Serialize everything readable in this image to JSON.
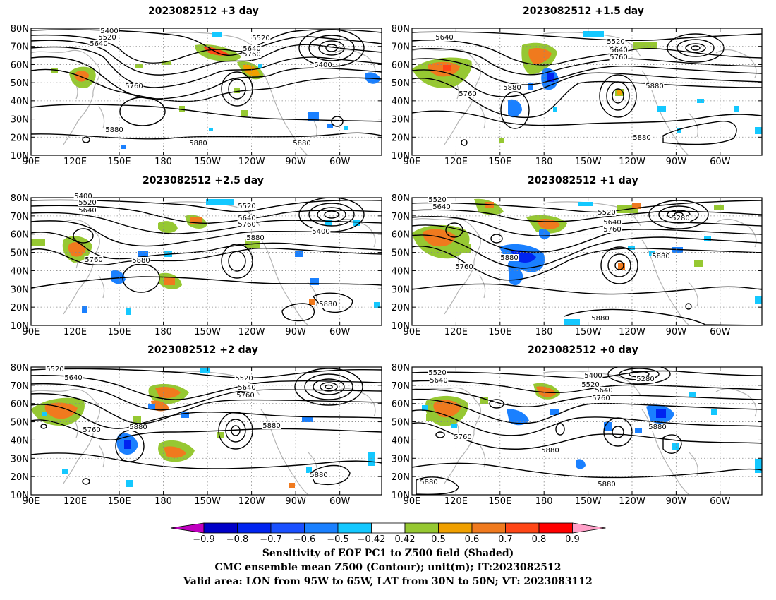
{
  "panels": [
    {
      "id": "p1",
      "title": "2023082512  +3 day",
      "labels": [
        [
          "5400",
          155,
          46
        ],
        [
          "5520",
          152,
          55
        ],
        [
          "5640",
          140,
          64
        ],
        [
          "5520",
          370,
          56
        ],
        [
          "5640",
          357,
          71
        ],
        [
          "5760",
          357,
          79
        ],
        [
          "5400",
          458,
          94
        ],
        [
          "5760",
          190,
          124
        ],
        [
          "5880",
          162,
          186
        ],
        [
          "5880",
          281,
          205
        ],
        [
          "5880",
          428,
          205
        ]
      ]
    },
    {
      "id": "p2",
      "title": "2023082512  +1.5 day",
      "labels": [
        [
          "5640",
          630,
          55
        ],
        [
          "5520",
          873,
          61
        ],
        [
          "5640",
          877,
          73
        ],
        [
          "5760",
          877,
          83
        ],
        [
          "5760",
          663,
          135
        ],
        [
          "5880",
          726,
          126
        ],
        [
          "5880",
          928,
          124
        ],
        [
          "5880",
          910,
          197
        ]
      ]
    },
    {
      "id": "p3",
      "title": "2023082512  +2.5 day",
      "labels": [
        [
          "5400",
          118,
          280
        ],
        [
          "5520",
          124,
          289
        ],
        [
          "5640",
          124,
          300
        ],
        [
          "5520",
          350,
          294
        ],
        [
          "5640",
          350,
          311
        ],
        [
          "5760",
          350,
          320
        ],
        [
          "5400",
          455,
          330
        ],
        [
          "5880",
          362,
          339
        ],
        [
          "5760",
          133,
          370
        ],
        [
          "5880",
          200,
          371
        ],
        [
          "5880",
          465,
          433
        ]
      ]
    },
    {
      "id": "p4",
      "title": "2023082512  +1 day",
      "labels": [
        [
          "5520",
          620,
          285
        ],
        [
          "5640",
          626,
          295
        ],
        [
          "5520",
          860,
          303
        ],
        [
          "5640",
          868,
          317
        ],
        [
          "5760",
          868,
          327
        ],
        [
          "5280",
          965,
          311
        ],
        [
          "5880",
          722,
          367
        ],
        [
          "5880",
          937,
          365
        ],
        [
          "5760",
          658,
          380
        ],
        [
          "5880",
          851,
          453
        ]
      ]
    },
    {
      "id": "p5",
      "title": "2023082512  +2 day",
      "labels": [
        [
          "5520",
          78,
          525
        ],
        [
          "5640",
          104,
          537
        ],
        [
          "5520",
          346,
          538
        ],
        [
          "5640",
          350,
          551
        ],
        [
          "5760",
          348,
          562
        ],
        [
          "5880",
          196,
          607
        ],
        [
          "5760",
          130,
          611
        ],
        [
          "5880",
          385,
          605
        ],
        [
          "5880",
          452,
          675
        ]
      ]
    },
    {
      "id": "p6",
      "title": "2023082512  +0 day",
      "labels": [
        [
          "5400",
          841,
          534
        ],
        [
          "5520",
          620,
          530
        ],
        [
          "5640",
          622,
          541
        ],
        [
          "5520",
          837,
          547
        ],
        [
          "5640",
          856,
          555
        ],
        [
          "5760",
          852,
          566
        ],
        [
          "5280",
          915,
          539
        ],
        [
          "5880",
          932,
          607
        ],
        [
          "5760",
          656,
          621
        ],
        [
          "5880",
          780,
          640
        ],
        [
          "5880",
          860,
          688
        ],
        [
          "5880",
          608,
          685
        ]
      ]
    }
  ],
  "lat_labels": [
    "10N",
    "20N",
    "30N",
    "40N",
    "50N",
    "60N",
    "70N",
    "80N"
  ],
  "lon_labels": [
    "90E",
    "120E",
    "150E",
    "180",
    "150W",
    "120W",
    "90W",
    "60W"
  ],
  "colorbar": {
    "ticks": [
      "−0.9",
      "−0.8",
      "−0.7",
      "−0.6",
      "−0.5",
      "−0.42",
      "0.42",
      "0.5",
      "0.6",
      "0.7",
      "0.8",
      "0.9"
    ],
    "colors": [
      "#c000c0",
      "#0000c8",
      "#0024f0",
      "#1a50ff",
      "#1a80ff",
      "#14c8ff",
      "#ffffff",
      "#96c832",
      "#f0a000",
      "#f07a1e",
      "#ff4616",
      "#ff0000",
      "#ffa0c8"
    ]
  },
  "caption": {
    "line1": "Sensitivity of EOF PC1 to Z500 field (Shaded)",
    "line2": "CMC ensemble mean Z500 (Contour); unit(m); IT:2023082512",
    "line3": "Valid area: LON from 95W to 65W, LAT from 30N to 50N; VT: 2023083112"
  }
}
